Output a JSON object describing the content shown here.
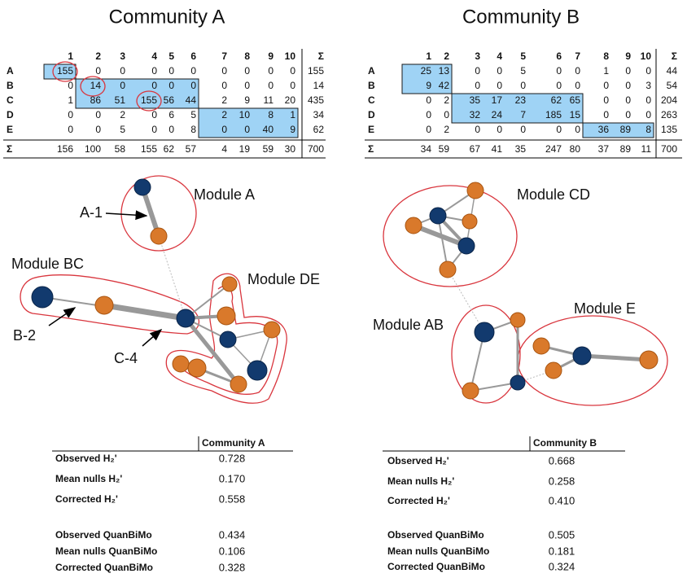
{
  "panels": [
    {
      "title": "Community A",
      "matrix": {
        "column_labels": [
          "1",
          "2",
          "3",
          "4",
          "5",
          "6",
          "7",
          "8",
          "9",
          "10",
          "Σ"
        ],
        "rows": [
          {
            "label": "A",
            "values": [
              155,
              0,
              0,
              0,
              0,
              0,
              0,
              0,
              0,
              0
            ],
            "sum": 155
          },
          {
            "label": "B",
            "values": [
              0,
              14,
              0,
              0,
              0,
              0,
              0,
              0,
              0,
              0
            ],
            "sum": 14
          },
          {
            "label": "C",
            "values": [
              1,
              86,
              51,
              155,
              56,
              44,
              2,
              9,
              11,
              20
            ],
            "sum": 435
          },
          {
            "label": "D",
            "values": [
              0,
              0,
              2,
              0,
              6,
              5,
              2,
              10,
              8,
              1
            ],
            "sum": 34
          },
          {
            "label": "E",
            "values": [
              0,
              0,
              5,
              0,
              0,
              8,
              0,
              0,
              40,
              9
            ],
            "sum": 62
          }
        ],
        "sum_row": {
          "label": "Σ",
          "values": [
            156,
            100,
            58,
            155,
            62,
            57,
            4,
            19,
            59,
            30
          ],
          "total": 700
        },
        "highlight_blocks": [
          {
            "rows": [
              0,
              0
            ],
            "cols": [
              0,
              0
            ]
          },
          {
            "rows": [
              1,
              2
            ],
            "cols": [
              1,
              5
            ]
          },
          {
            "rows": [
              3,
              4
            ],
            "cols": [
              6,
              9
            ]
          }
        ],
        "circled": [
          [
            0,
            0
          ],
          [
            1,
            1
          ],
          [
            2,
            3
          ]
        ]
      },
      "network": {
        "labels": [
          "Module A",
          "A-1",
          "Module BC",
          "Module DE",
          "B-2",
          "C-4"
        ]
      },
      "stats": {
        "header": "Community A",
        "rows": [
          {
            "label": "Observed H₂'",
            "value": "0.728"
          },
          {
            "label": "Mean nulls H₂'",
            "value": "0.170"
          },
          {
            "label": "Corrected H₂'",
            "value": "0.558"
          },
          {
            "label": "Observed QuanBiMo",
            "value": "0.434"
          },
          {
            "label": "Mean nulls QuanBiMo",
            "value": "0.106"
          },
          {
            "label": "Corrected QuanBiMo",
            "value": "0.328"
          }
        ]
      }
    },
    {
      "title": "Community B",
      "matrix": {
        "column_labels": [
          "1",
          "2",
          "3",
          "4",
          "5",
          "6",
          "7",
          "8",
          "9",
          "10",
          "Σ"
        ],
        "rows": [
          {
            "label": "A",
            "values": [
              25,
              13,
              0,
              0,
              5,
              0,
              0,
              1,
              0,
              0
            ],
            "sum": 44
          },
          {
            "label": "B",
            "values": [
              9,
              42,
              0,
              0,
              0,
              0,
              0,
              0,
              0,
              3
            ],
            "sum": 54
          },
          {
            "label": "C",
            "values": [
              0,
              2,
              35,
              17,
              23,
              62,
              65,
              0,
              0,
              0
            ],
            "sum": 204
          },
          {
            "label": "D",
            "values": [
              0,
              0,
              32,
              24,
              7,
              185,
              15,
              0,
              0,
              0
            ],
            "sum": 263
          },
          {
            "label": "E",
            "values": [
              0,
              2,
              0,
              0,
              0,
              0,
              0,
              36,
              89,
              8
            ],
            "sum": 135
          }
        ],
        "sum_row": {
          "label": "Σ",
          "values": [
            34,
            59,
            67,
            41,
            35,
            247,
            80,
            37,
            89,
            11
          ],
          "total": 700
        },
        "highlight_blocks": [
          {
            "rows": [
              0,
              1
            ],
            "cols": [
              0,
              1
            ]
          },
          {
            "rows": [
              2,
              3
            ],
            "cols": [
              2,
              6
            ]
          },
          {
            "rows": [
              4,
              4
            ],
            "cols": [
              7,
              9
            ]
          }
        ],
        "circled": []
      },
      "network": {
        "labels": [
          "Module CD",
          "Module AB",
          "Module E"
        ]
      },
      "stats": {
        "header": "Community B",
        "rows": [
          {
            "label": "Observed H₂'",
            "value": "0.668"
          },
          {
            "label": "Mean nulls H₂'",
            "value": "0.258"
          },
          {
            "label": "Corrected H₂'",
            "value": "0.410"
          },
          {
            "label": "Observed QuanBiMo",
            "value": "0.505"
          },
          {
            "label": "Mean nulls QuanBiMo",
            "value": "0.181"
          },
          {
            "label": "Corrected QuanBiMo",
            "value": "0.324"
          }
        ]
      }
    }
  ]
}
